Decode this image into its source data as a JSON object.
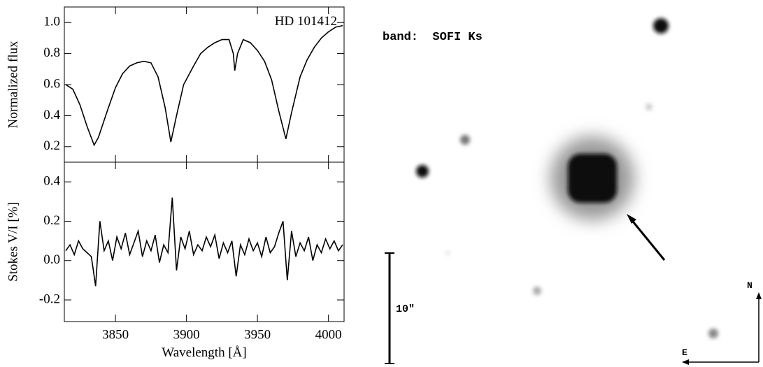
{
  "chart_data": [
    {
      "type": "line",
      "ylabel": "Normalized flux",
      "annotation": "HD 101412",
      "xlim": [
        3814,
        4011
      ],
      "ylim": [
        0.1,
        1.1
      ],
      "yticks": [
        0.2,
        0.4,
        0.6,
        0.8,
        {
          "value": 1,
          "label": "1.0"
        }
      ],
      "color": "#000000",
      "x": [
        3815,
        3820,
        3825,
        3830,
        3835,
        3838,
        3845,
        3850,
        3855,
        3860,
        3865,
        3870,
        3875,
        3880,
        3885,
        3889,
        3893,
        3898,
        3905,
        3910,
        3915,
        3920,
        3925,
        3930,
        3933,
        3934,
        3936,
        3940,
        3945,
        3950,
        3955,
        3960,
        3965,
        3970,
        3974,
        3980,
        3985,
        3990,
        3995,
        4000,
        4005,
        4010
      ],
      "values": [
        0.6,
        0.57,
        0.47,
        0.33,
        0.21,
        0.26,
        0.45,
        0.58,
        0.67,
        0.72,
        0.74,
        0.75,
        0.74,
        0.65,
        0.45,
        0.23,
        0.4,
        0.6,
        0.72,
        0.8,
        0.84,
        0.87,
        0.89,
        0.89,
        0.8,
        0.69,
        0.8,
        0.89,
        0.87,
        0.82,
        0.75,
        0.63,
        0.43,
        0.25,
        0.42,
        0.65,
        0.76,
        0.84,
        0.9,
        0.94,
        0.97,
        0.98
      ]
    },
    {
      "type": "line",
      "ylabel": "Stokes V/I [%]",
      "xlabel": "Wavelength [Å]",
      "xlim": [
        3814,
        4011
      ],
      "ylim": [
        -0.31,
        0.5
      ],
      "xticks": [
        3850,
        3900,
        3950,
        4000
      ],
      "yticks": [
        -0.2,
        {
          "value": 0,
          "label": "0.0"
        },
        0.2,
        0.4
      ],
      "color": "#000000",
      "x": [
        3815,
        3818,
        3821,
        3824,
        3827,
        3830,
        3833,
        3836,
        3839,
        3842,
        3845,
        3848,
        3851,
        3854,
        3857,
        3860,
        3863,
        3866,
        3869,
        3872,
        3875,
        3878,
        3881,
        3884,
        3887,
        3890,
        3893,
        3896,
        3899,
        3902,
        3905,
        3908,
        3911,
        3914,
        3917,
        3920,
        3923,
        3926,
        3929,
        3932,
        3935,
        3938,
        3941,
        3944,
        3947,
        3950,
        3953,
        3956,
        3959,
        3962,
        3965,
        3968,
        3971,
        3974,
        3977,
        3980,
        3983,
        3986,
        3989,
        3992,
        3995,
        3998,
        4001,
        4004,
        4007,
        4010
      ],
      "values": [
        0.05,
        0.08,
        0.03,
        0.1,
        0.06,
        0.04,
        0.02,
        -0.13,
        0.2,
        0.05,
        0.1,
        0.0,
        0.12,
        0.06,
        0.14,
        0.03,
        0.09,
        0.15,
        0.02,
        0.1,
        0.05,
        0.13,
        -0.01,
        0.08,
        0.04,
        0.32,
        -0.05,
        0.12,
        0.06,
        0.15,
        0.03,
        0.08,
        0.05,
        0.12,
        0.07,
        0.13,
        0.01,
        0.09,
        0.04,
        0.1,
        -0.08,
        0.08,
        0.03,
        0.11,
        0.05,
        0.09,
        0.02,
        0.12,
        0.04,
        0.07,
        0.14,
        0.2,
        -0.1,
        0.15,
        0.02,
        0.09,
        0.05,
        0.12,
        0.0,
        0.08,
        0.04,
        0.11,
        0.06,
        0.1,
        0.05,
        0.08
      ]
    }
  ],
  "image": {
    "band_label": "band:  SOFI Ks",
    "scale_label": "10\"",
    "north": "N",
    "east": "E"
  }
}
